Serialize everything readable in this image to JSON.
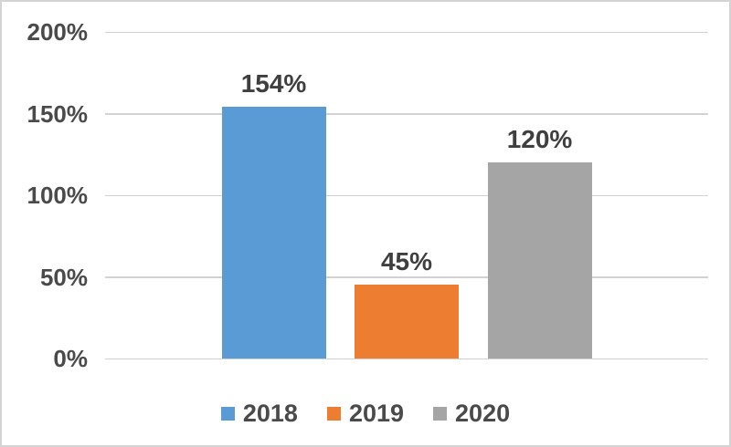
{
  "chart_data": {
    "type": "bar",
    "title": "",
    "xlabel": "",
    "ylabel": "",
    "categories": [
      ""
    ],
    "series": [
      {
        "name": "2018",
        "values": [
          154
        ],
        "color": "#5B9BD5",
        "data_label": "154%"
      },
      {
        "name": "2019",
        "values": [
          45
        ],
        "color": "#ED7D31",
        "data_label": "45%"
      },
      {
        "name": "2020",
        "values": [
          120
        ],
        "color": "#A5A5A5",
        "data_label": "120%"
      }
    ],
    "ylim": [
      0,
      200
    ],
    "y_ticks": [
      {
        "value": 0,
        "label": "0%"
      },
      {
        "value": 50,
        "label": "50%"
      },
      {
        "value": 100,
        "label": "100%"
      },
      {
        "value": 150,
        "label": "150%"
      },
      {
        "value": 200,
        "label": "200%"
      }
    ],
    "grid": "horizontal",
    "legend_position": "bottom",
    "legend": [
      "2018",
      "2019",
      "2020"
    ]
  },
  "colors": {
    "background": "#ffffff",
    "frame_border": "#d4d4d4",
    "gridline": "#d2d2d2",
    "axis_text": "#4a4a4a",
    "data_label_text": "#3f3f3f",
    "legend_text": "#4a4a4a"
  }
}
